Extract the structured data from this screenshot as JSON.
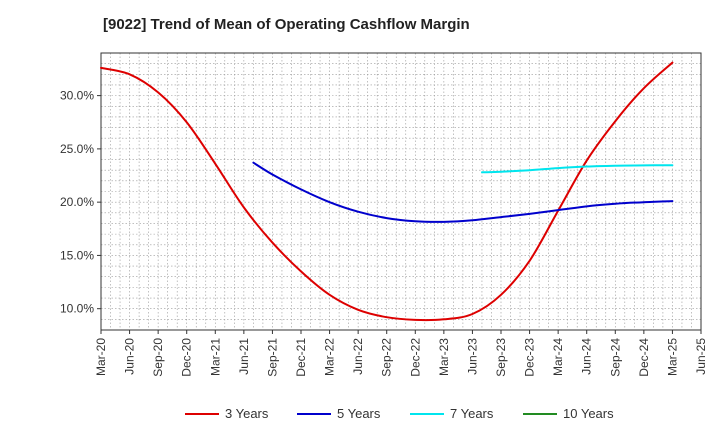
{
  "chart_data": {
    "type": "line",
    "title": "[9022]  Trend of Mean of Operating Cashflow Margin",
    "xlabel": "",
    "ylabel": "",
    "x_ticks": [
      "Mar-20",
      "Jun-20",
      "Sep-20",
      "Dec-20",
      "Mar-21",
      "Jun-21",
      "Sep-21",
      "Dec-21",
      "Mar-22",
      "Jun-22",
      "Sep-22",
      "Dec-22",
      "Mar-23",
      "Jun-23",
      "Sep-23",
      "Dec-23",
      "Mar-24",
      "Jun-24",
      "Sep-24",
      "Dec-24",
      "Mar-25",
      "Jun-25"
    ],
    "y_ticks": [
      "10.0%",
      "15.0%",
      "20.0%",
      "25.0%",
      "30.0%"
    ],
    "y_tick_values": [
      10,
      15,
      20,
      25,
      30
    ],
    "ylim": [
      8,
      34
    ],
    "grid": true,
    "legend_position": "bottom",
    "series": [
      {
        "name": "3 Years",
        "color": "#dd0000",
        "points": [
          [
            "Mar-20",
            32.6
          ],
          [
            "Jun-20",
            32.0
          ],
          [
            "Sep-20",
            30.3
          ],
          [
            "Dec-20",
            27.5
          ],
          [
            "Mar-21",
            23.6
          ],
          [
            "Jun-21",
            19.5
          ],
          [
            "Sep-21",
            16.2
          ],
          [
            "Dec-21",
            13.5
          ],
          [
            "Mar-22",
            11.3
          ],
          [
            "Jun-22",
            9.9
          ],
          [
            "Sep-22",
            9.2
          ],
          [
            "Dec-22",
            8.95
          ],
          [
            "Mar-23",
            9.0
          ],
          [
            "Jun-23",
            9.5
          ],
          [
            "Sep-23",
            11.3
          ],
          [
            "Dec-23",
            14.5
          ],
          [
            "Mar-24",
            19.2
          ],
          [
            "Jun-24",
            23.9
          ],
          [
            "Sep-24",
            27.6
          ],
          [
            "Dec-24",
            30.7
          ],
          [
            "Mar-25",
            33.1
          ]
        ]
      },
      {
        "name": "5 Years",
        "color": "#0000cc",
        "points": [
          [
            "Jul-21",
            23.7
          ],
          [
            "Sep-21",
            22.6
          ],
          [
            "Dec-21",
            21.2
          ],
          [
            "Mar-22",
            20.0
          ],
          [
            "Jun-22",
            19.1
          ],
          [
            "Sep-22",
            18.5
          ],
          [
            "Dec-22",
            18.2
          ],
          [
            "Mar-23",
            18.15
          ],
          [
            "Jun-23",
            18.3
          ],
          [
            "Sep-23",
            18.6
          ],
          [
            "Dec-23",
            18.9
          ],
          [
            "Mar-24",
            19.25
          ],
          [
            "Jun-24",
            19.6
          ],
          [
            "Sep-24",
            19.85
          ],
          [
            "Dec-24",
            20.0
          ],
          [
            "Mar-25",
            20.1
          ]
        ]
      },
      {
        "name": "7 Years",
        "color": "#00e5ee",
        "points": [
          [
            "Jul-23",
            22.8
          ],
          [
            "Sep-23",
            22.85
          ],
          [
            "Dec-23",
            23.0
          ],
          [
            "Mar-24",
            23.2
          ],
          [
            "Jun-24",
            23.35
          ],
          [
            "Sep-24",
            23.42
          ],
          [
            "Dec-24",
            23.45
          ],
          [
            "Mar-25",
            23.47
          ]
        ]
      },
      {
        "name": "10 Years",
        "color": "#228b22",
        "points": []
      }
    ]
  }
}
